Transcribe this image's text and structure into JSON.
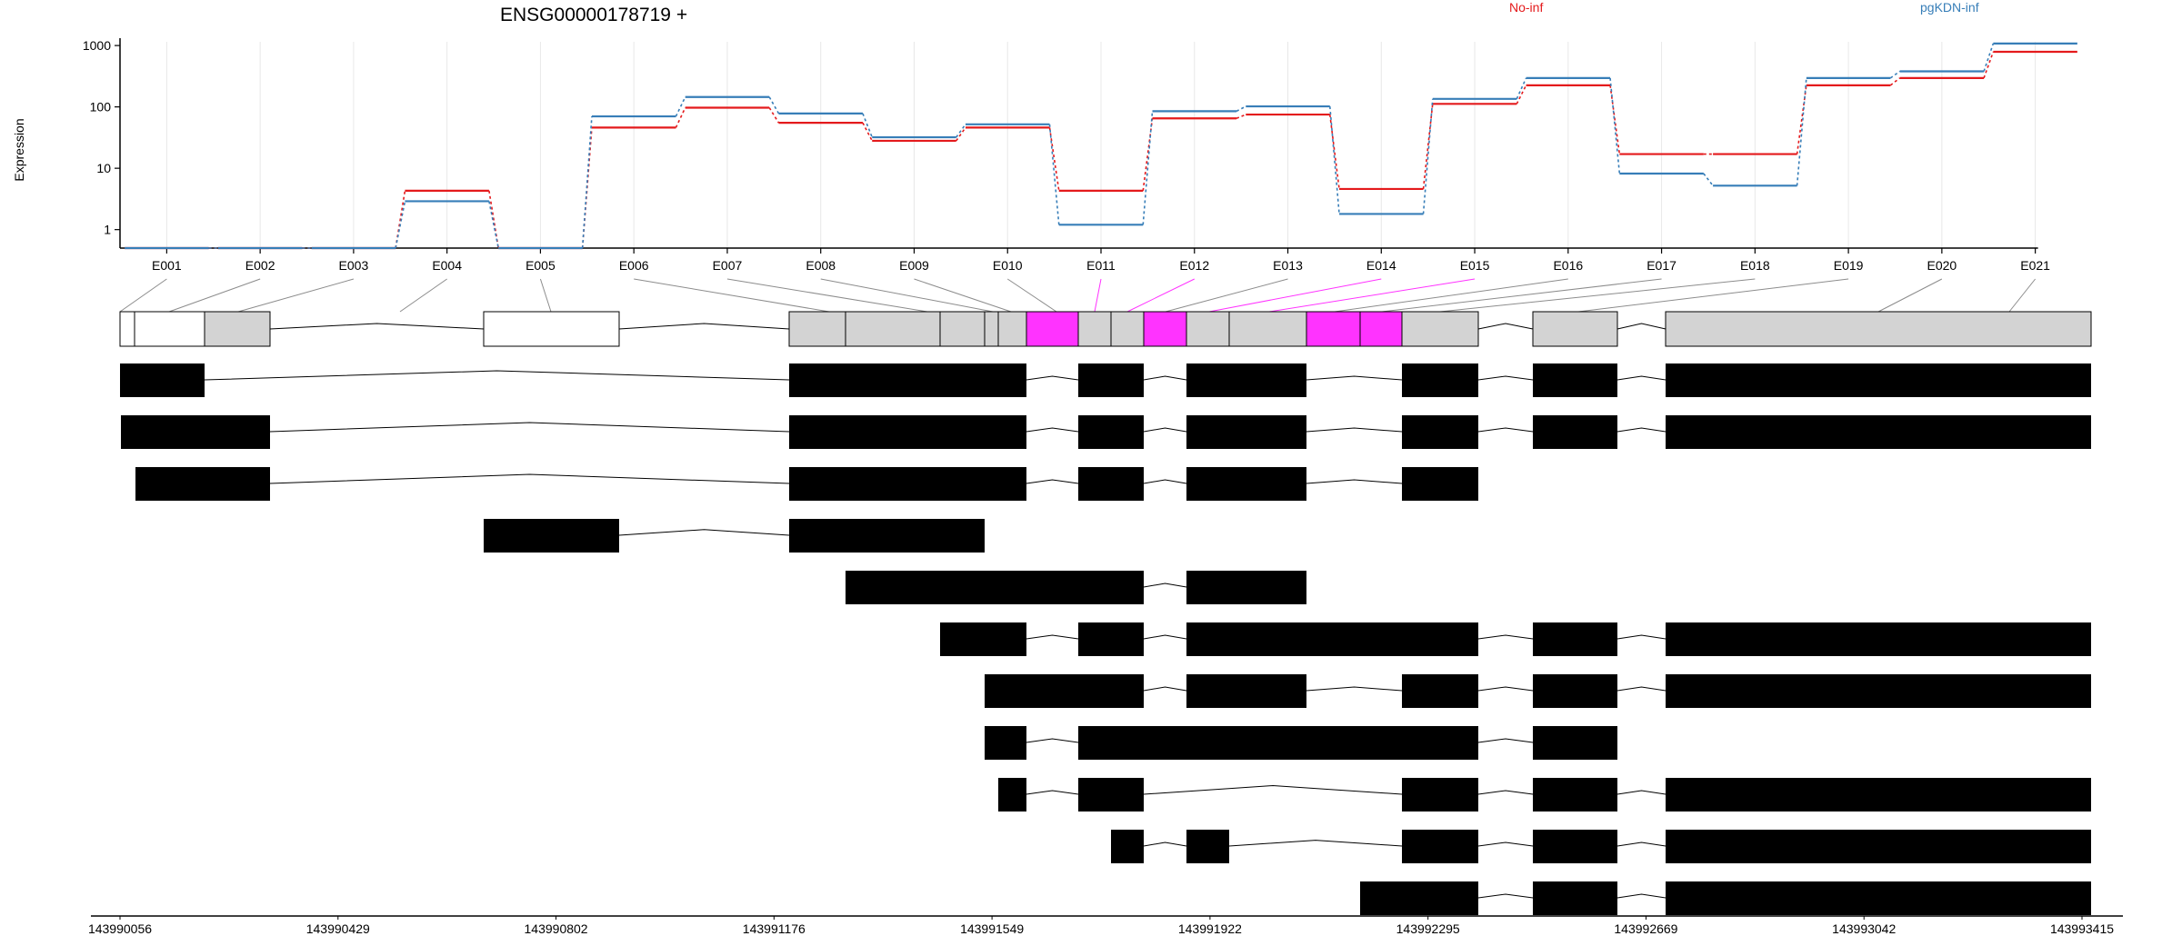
{
  "title": "ENSG00000178719 +",
  "chart_data": {
    "type": "line",
    "title": "ENSG00000178719 +",
    "ylabel": "Expression",
    "xlabel": "",
    "y_scale": "log",
    "ylim": [
      0.5,
      1150
    ],
    "y_ticks": [
      "1",
      "10",
      "100",
      "1000"
    ],
    "categories": [
      "E001",
      "E002",
      "E003",
      "E004",
      "E005",
      "E006",
      "E007",
      "E008",
      "E009",
      "E010",
      "E011",
      "E012",
      "E013",
      "E014",
      "E015",
      "E016",
      "E017",
      "E018",
      "E019",
      "E020",
      "E021"
    ],
    "legend_placement": "top",
    "grid": "vertical",
    "series": [
      {
        "name": "No-inf",
        "color": "#e41a1c",
        "values": [
          0.5,
          0.5,
          0.5,
          4.3,
          0.5,
          46,
          97,
          55,
          28,
          46,
          4.3,
          65,
          75,
          4.6,
          112,
          225,
          17,
          17,
          225,
          295,
          790
        ]
      },
      {
        "name": "pgKDN-inf",
        "color": "#377eb8",
        "values": [
          0.5,
          0.5,
          0.5,
          2.9,
          0.5,
          70,
          145,
          78,
          32,
          52,
          1.2,
          85,
          102,
          1.8,
          135,
          295,
          8.2,
          5.2,
          295,
          380,
          1080
        ]
      }
    ],
    "gene_model": {
      "genomic_axis_ticks": [
        "143990056",
        "143990429",
        "143990802",
        "143991176",
        "143991549",
        "143991922",
        "143992295",
        "143992669",
        "143993042",
        "143993415"
      ],
      "highlight_color": "#ff33ff",
      "highlighted_exons": [
        "E011",
        "E012",
        "E014",
        "E015"
      ],
      "transcript_count": 11
    }
  }
}
